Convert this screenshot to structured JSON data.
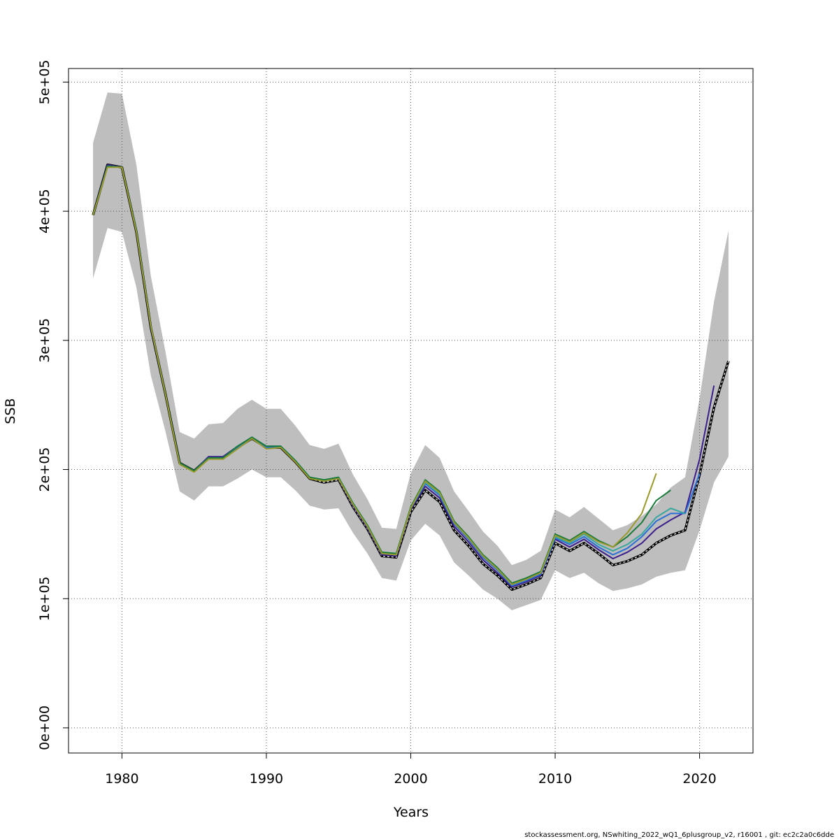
{
  "chart_data": {
    "type": "line",
    "xlabel": "Years",
    "ylabel": "SSB",
    "xlim": [
      1976.3,
      1023.7
    ],
    "ylim": [
      -19500,
      510500
    ],
    "x_ticks": [
      1980,
      1990,
      2000,
      2010,
      2020
    ],
    "x_tick_labels": [
      "1980",
      "1990",
      "2000",
      "2010",
      "2020"
    ],
    "y_ticks": [
      0,
      100000,
      200000,
      300000,
      400000,
      500000
    ],
    "y_tick_labels": [
      "0e+00",
      "1e+05",
      "2e+05",
      "3e+05",
      "4e+05",
      "5e+05"
    ],
    "grid": true,
    "footer": "stockassessment.org, NSwhiting_2022_wQ1_6plusgroup_v2, r16001 , git: ec2c2a0c6dde",
    "band": {
      "x": [
        1978,
        1979,
        1980,
        1981,
        1982,
        1983,
        1984,
        1985,
        1986,
        1987,
        1988,
        1989,
        1990,
        1991,
        1992,
        1993,
        1994,
        1995,
        1996,
        1997,
        1998,
        1999,
        2000,
        2001,
        2002,
        2003,
        2004,
        2005,
        2006,
        2007,
        2008,
        2009,
        2010,
        2011,
        2012,
        2013,
        2014,
        2015,
        2016,
        2017,
        2018,
        2019,
        2020,
        2021,
        2022
      ],
      "lower": [
        348000,
        387000,
        384000,
        341000,
        273000,
        230000,
        183000,
        176000,
        187000,
        187000,
        193000,
        200000,
        194000,
        194000,
        184000,
        172000,
        169000,
        170000,
        151000,
        135000,
        116000,
        114000,
        145000,
        158000,
        149000,
        128000,
        118000,
        107000,
        100000,
        91000,
        95000,
        99000,
        122000,
        116000,
        120000,
        112000,
        106000,
        108000,
        111000,
        117000,
        120000,
        122000,
        153000,
        190000,
        210000
      ],
      "upper": [
        453000,
        492000,
        491000,
        436000,
        350000,
        292000,
        229000,
        224000,
        235000,
        236000,
        247000,
        254000,
        247000,
        247000,
        234000,
        219000,
        216000,
        220000,
        196000,
        177000,
        155000,
        154000,
        197000,
        219000,
        209000,
        183000,
        168000,
        152000,
        141000,
        126000,
        130000,
        137000,
        169000,
        163000,
        171000,
        162000,
        153000,
        157000,
        164000,
        173000,
        186000,
        194000,
        255000,
        330000,
        385000
      ]
    },
    "series": [
      {
        "color": "#000000",
        "dashed": true,
        "x": [
          1978,
          1979,
          1980,
          1981,
          1982,
          1983,
          1984,
          1985,
          1986,
          1987,
          1988,
          1989,
          1990,
          1991,
          1992,
          1993,
          1994,
          1995,
          1996,
          1997,
          1998,
          1999,
          2000,
          2001,
          2002,
          2003,
          2004,
          2005,
          2006,
          2007,
          2008,
          2009,
          2010,
          2011,
          2012,
          2013,
          2014,
          2015,
          2016,
          2017,
          2018,
          2019,
          2020,
          2021,
          2022
        ],
        "y": [
          397000,
          436000,
          434000,
          384000,
          310000,
          259000,
          205000,
          199000,
          209000,
          209000,
          217000,
          224000,
          217000,
          217000,
          206000,
          193000,
          190000,
          192000,
          171000,
          154000,
          133000,
          132000,
          167000,
          184000,
          175000,
          153000,
          141000,
          127000,
          118000,
          107000,
          111000,
          116000,
          143000,
          137000,
          143000,
          135000,
          126000,
          129000,
          134000,
          143000,
          149000,
          153000,
          196000,
          248000,
          284000
        ]
      },
      {
        "color": "#3c1e8c",
        "dashed": false,
        "x": [
          1978,
          1979,
          1980,
          1981,
          1982,
          1983,
          1984,
          1985,
          1986,
          1987,
          1988,
          1989,
          1990,
          1991,
          1992,
          1993,
          1994,
          1995,
          1996,
          1997,
          1998,
          1999,
          2000,
          2001,
          2002,
          2003,
          2004,
          2005,
          2006,
          2007,
          2008,
          2009,
          2010,
          2011,
          2012,
          2013,
          2014,
          2015,
          2016,
          2017,
          2018,
          2019,
          2020,
          2021
        ],
        "y": [
          397000,
          436000,
          434000,
          384000,
          310000,
          259000,
          205000,
          199000,
          210000,
          210000,
          218000,
          225000,
          218000,
          218000,
          207000,
          194000,
          191000,
          193000,
          172000,
          155000,
          134000,
          133000,
          169000,
          187000,
          178000,
          156000,
          144000,
          130000,
          120000,
          109000,
          113000,
          118000,
          146000,
          140000,
          146000,
          138000,
          131000,
          136000,
          143000,
          154000,
          161000,
          167000,
          208000,
          265000
        ]
      },
      {
        "color": "#2a6fd6",
        "dashed": false,
        "x": [
          1978,
          1979,
          1980,
          1981,
          1982,
          1983,
          1984,
          1985,
          1986,
          1987,
          1988,
          1989,
          1990,
          1991,
          1992,
          1993,
          1994,
          1995,
          1996,
          1997,
          1998,
          1999,
          2000,
          2001,
          2002,
          2003,
          2004,
          2005,
          2006,
          2007,
          2008,
          2009,
          2010,
          2011,
          2012,
          2013,
          2014,
          2015,
          2016,
          2017,
          2018,
          2019,
          2020
        ],
        "y": [
          397000,
          435000,
          434000,
          385000,
          311000,
          259000,
          205000,
          199000,
          209000,
          209000,
          217000,
          224000,
          217000,
          218000,
          207000,
          194000,
          191000,
          193000,
          173000,
          156000,
          135000,
          134000,
          170000,
          189000,
          180000,
          158000,
          146000,
          132000,
          122000,
          110000,
          114000,
          119000,
          147000,
          142000,
          148000,
          140000,
          134000,
          139000,
          148000,
          160000,
          166000,
          166000,
          197000
        ]
      },
      {
        "color": "#3aa8a0",
        "dashed": false,
        "x": [
          1978,
          1979,
          1980,
          1981,
          1982,
          1983,
          1984,
          1985,
          1986,
          1987,
          1988,
          1989,
          1990,
          1991,
          1992,
          1993,
          1994,
          1995,
          1996,
          1997,
          1998,
          1999,
          2000,
          2001,
          2002,
          2003,
          2004,
          2005,
          2006,
          2007,
          2008,
          2009,
          2010,
          2011,
          2012,
          2013,
          2014,
          2015,
          2016,
          2017,
          2018,
          2019
        ],
        "y": [
          397000,
          435000,
          434000,
          385000,
          311000,
          259000,
          205000,
          199000,
          209000,
          209000,
          218000,
          225000,
          218000,
          218000,
          207000,
          194000,
          192000,
          194000,
          173000,
          156000,
          135000,
          134000,
          170000,
          190000,
          181000,
          159000,
          147000,
          133000,
          123000,
          111000,
          115000,
          120000,
          148000,
          143000,
          150000,
          142000,
          137000,
          142000,
          150000,
          163000,
          170000,
          166000
        ]
      },
      {
        "color": "#1a7a3a",
        "dashed": false,
        "x": [
          1978,
          1979,
          1980,
          1981,
          1982,
          1983,
          1984,
          1985,
          1986,
          1987,
          1988,
          1989,
          1990,
          1991,
          1992,
          1993,
          1994,
          1995,
          1996,
          1997,
          1998,
          1999,
          2000,
          2001,
          2002,
          2003,
          2004,
          2005,
          2006,
          2007,
          2008,
          2009,
          2010,
          2011,
          2012,
          2013,
          2014,
          2015,
          2016,
          2017,
          2018
        ],
        "y": [
          397000,
          435000,
          434000,
          385000,
          311000,
          259000,
          205000,
          199000,
          209000,
          209000,
          218000,
          225000,
          218000,
          218000,
          207000,
          194000,
          192000,
          194000,
          174000,
          157000,
          136000,
          135000,
          171000,
          192000,
          183000,
          160000,
          148000,
          134000,
          124000,
          112000,
          116000,
          121000,
          150000,
          145000,
          152000,
          145000,
          140000,
          148000,
          159000,
          176000,
          184000
        ]
      },
      {
        "color": "#9a9a30",
        "dashed": false,
        "x": [
          1978,
          1979,
          1980,
          1981,
          1982,
          1983,
          1984,
          1985,
          1986,
          1987,
          1988,
          1989,
          1990,
          1991,
          1992,
          1993,
          1994,
          1995,
          1996,
          1997,
          1998,
          1999,
          2000,
          2001,
          2002,
          2003,
          2004,
          2005,
          2006,
          2007,
          2008,
          2009,
          2010,
          2011,
          2012,
          2013,
          2014,
          2015,
          2016,
          2017
        ],
        "y": [
          397000,
          434000,
          434000,
          384000,
          311000,
          259000,
          204000,
          198000,
          208000,
          208000,
          216000,
          224000,
          216000,
          217000,
          206000,
          193000,
          191000,
          193000,
          173000,
          156000,
          135000,
          134000,
          170000,
          191000,
          182000,
          159000,
          147000,
          133000,
          123000,
          111000,
          115000,
          120000,
          149000,
          144000,
          151000,
          144000,
          140000,
          151000,
          166000,
          197000
        ]
      }
    ]
  }
}
